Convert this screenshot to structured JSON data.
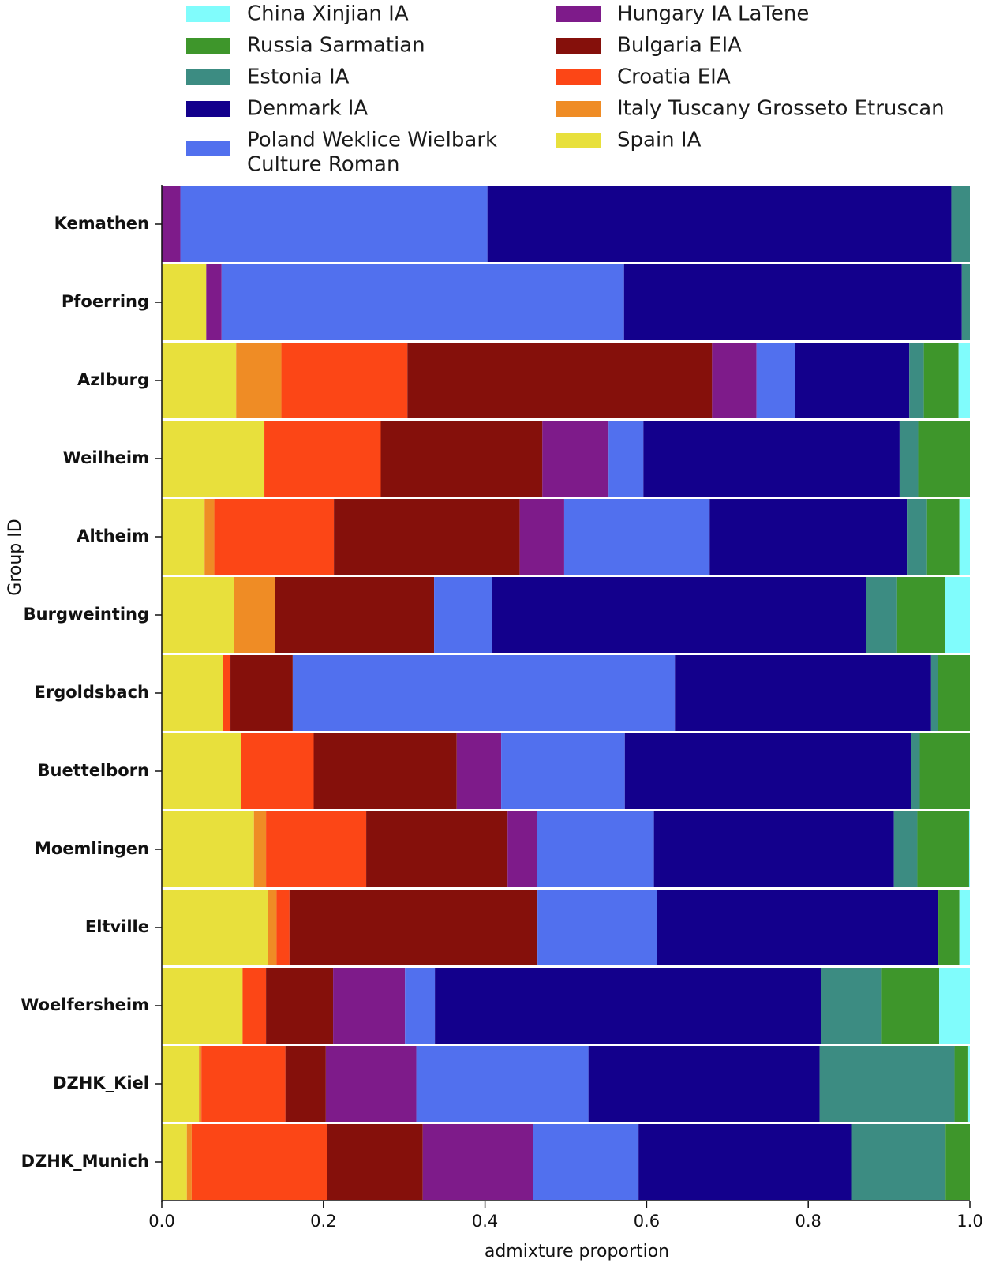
{
  "chart_data": {
    "type": "bar",
    "orientation": "horizontal",
    "stacked": true,
    "xlabel": "admixture proportion",
    "ylabel": "Group ID",
    "xlim": [
      0,
      1
    ],
    "xticks": [
      "0.0",
      "0.2",
      "0.4",
      "0.6",
      "0.8",
      "1.0"
    ],
    "legend_position": "top",
    "categories": [
      "Kemathen",
      "Pfoerring",
      "Azlburg",
      "Weilheim",
      "Altheim",
      "Burgweinting",
      "Ergoldsbach",
      "Buettelborn",
      "Moemlingen",
      "Eltville",
      "Woelfersheim",
      "DZHK_Kiel",
      "DZHK_Munich"
    ],
    "series": [
      {
        "name": "Spain IA",
        "color": "#e8e03c",
        "values": [
          0,
          0.055,
          0.092,
          0.127,
          0.053,
          0.089,
          0.076,
          0.098,
          0.114,
          0.131,
          0.1,
          0.046,
          0.031
        ]
      },
      {
        "name": "Italy Tuscany Grosseto Etruscan",
        "color": "#ef8c25",
        "values": [
          0,
          0,
          0.056,
          0,
          0.012,
          0.051,
          0,
          0,
          0.015,
          0.011,
          0,
          0.003,
          0.006
        ]
      },
      {
        "name": "Croatia EIA",
        "color": "#fc4616",
        "values": [
          0,
          0,
          0.156,
          0.144,
          0.148,
          0,
          0.009,
          0.09,
          0.124,
          0.016,
          0.029,
          0.104,
          0.168
        ]
      },
      {
        "name": "Bulgaria EIA",
        "color": "#85100b",
        "values": [
          0,
          0,
          0.377,
          0.2,
          0.23,
          0.197,
          0.077,
          0.177,
          0.175,
          0.307,
          0.083,
          0.05,
          0.118
        ]
      },
      {
        "name": "Hungary IA LaTene",
        "color": "#7e1b8a",
        "values": [
          0.023,
          0.019,
          0.055,
          0.082,
          0.055,
          0,
          0,
          0.055,
          0.036,
          0,
          0.089,
          0.112,
          0.136
        ]
      },
      {
        "name": "Poland Weklice Wielbark Culture Roman",
        "color": "#5170ee",
        "values": [
          0.38,
          0.498,
          0.048,
          0.043,
          0.18,
          0.072,
          0.473,
          0.153,
          0.145,
          0.148,
          0.037,
          0.213,
          0.131
        ]
      },
      {
        "name": "Denmark IA",
        "color": "#13008c",
        "values": [
          0.574,
          0.418,
          0.141,
          0.317,
          0.244,
          0.463,
          0.317,
          0.354,
          0.297,
          0.348,
          0.478,
          0.286,
          0.264
        ]
      },
      {
        "name": "Estonia IA",
        "color": "#3c8c82",
        "values": [
          0.023,
          0.01,
          0.018,
          0.023,
          0.025,
          0.038,
          0.008,
          0.011,
          0.029,
          0,
          0.075,
          0.167,
          0.116
        ]
      },
      {
        "name": "Russia Sarmatian",
        "color": "#3e962b",
        "values": [
          0,
          0,
          0.043,
          0.064,
          0.04,
          0.059,
          0.04,
          0.062,
          0.064,
          0.026,
          0.071,
          0.017,
          0.03
        ]
      },
      {
        "name": "China Xinjian IA",
        "color": "#80fcfc",
        "values": [
          0,
          0,
          0.014,
          0,
          0.013,
          0.031,
          0,
          0,
          0.001,
          0.013,
          0.038,
          0.002,
          0
        ]
      }
    ]
  },
  "legend": [
    [
      "China Xinjian IA"
    ],
    [
      "Russia Sarmatian"
    ],
    [
      "Estonia IA"
    ],
    [
      "Denmark IA"
    ],
    [
      "Poland Weklice Wielbark",
      "Culture Roman"
    ],
    [
      "Hungary IA LaTene"
    ],
    [
      "Bulgaria EIA"
    ],
    [
      "Croatia EIA"
    ],
    [
      "Italy Tuscany Grosseto Etruscan"
    ],
    [
      "Spain IA"
    ]
  ]
}
